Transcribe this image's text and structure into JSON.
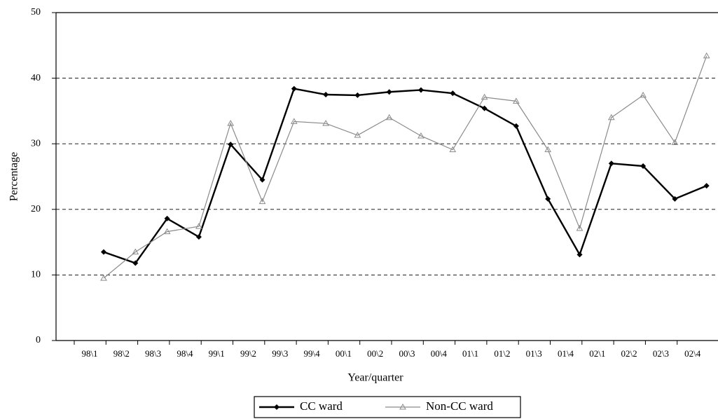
{
  "chart_data": {
    "type": "line",
    "x_label": "Year/quarter",
    "y_label": "Percentage",
    "categories": [
      "98\\1",
      "98\\2",
      "98\\3",
      "98\\4",
      "99\\1",
      "99\\2",
      "99\\3",
      "99\\4",
      "00\\1",
      "00\\2",
      "00\\3",
      "00\\4",
      "01\\1",
      "01\\2",
      "01\\3",
      "01\\4",
      "02\\1",
      "02\\2",
      "02\\3",
      "02\\4"
    ],
    "series": [
      {
        "name": "CC ward",
        "color": "#000000",
        "marker": "diamond",
        "values": [
          13.5,
          11.8,
          18.6,
          15.8,
          29.9,
          24.5,
          38.4,
          37.5,
          37.4,
          37.9,
          38.2,
          37.7,
          35.4,
          32.7,
          21.6,
          13.1,
          27.0,
          26.6,
          21.6,
          23.6
        ]
      },
      {
        "name": "Non-CC ward",
        "color": "#8a8a8a",
        "marker": "triangle",
        "values": [
          9.5,
          13.5,
          16.6,
          17.4,
          33.1,
          21.2,
          33.4,
          33.1,
          31.3,
          34.0,
          31.2,
          29.1,
          37.1,
          36.5,
          29.1,
          17.1,
          34.0,
          37.4,
          30.2,
          43.4
        ]
      }
    ],
    "ylim": [
      0,
      50
    ],
    "yticks": [
      0,
      10,
      20,
      30,
      40,
      50
    ],
    "grid": true
  }
}
